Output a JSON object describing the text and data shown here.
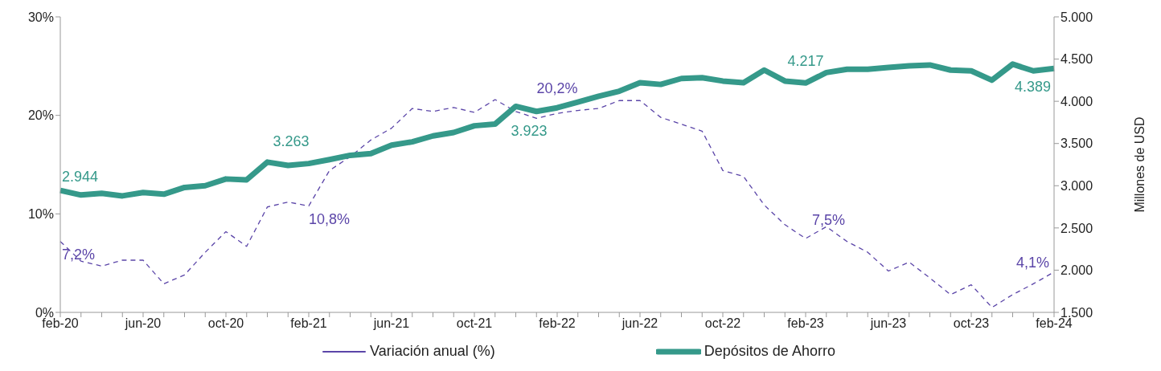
{
  "chart_data": {
    "type": "line",
    "y2label": "Millones de USD",
    "categories": [
      "feb-20",
      null,
      null,
      null,
      "jun-20",
      null,
      null,
      null,
      "oct-20",
      null,
      null,
      null,
      "feb-21",
      null,
      null,
      null,
      "jun-21",
      null,
      null,
      null,
      "oct-21",
      null,
      null,
      null,
      "feb-22",
      null,
      null,
      null,
      "jun-22",
      null,
      null,
      null,
      "oct-22",
      null,
      null,
      null,
      "feb-23",
      null,
      null,
      null,
      "jun-23",
      null,
      null,
      null,
      "oct-23",
      null,
      null,
      null,
      "feb-24"
    ],
    "series": [
      {
        "name": "Variación anual (%)",
        "color": "#5b45a8",
        "line_style": "dashed",
        "values": [
          7.2,
          5.2,
          4.7,
          5.3,
          5.3,
          2.9,
          3.8,
          6.1,
          8.2,
          6.7,
          10.7,
          11.2,
          10.8,
          14.4,
          15.8,
          17.5,
          18.7,
          20.7,
          20.4,
          20.8,
          20.3,
          21.6,
          20.4,
          19.7,
          20.2,
          20.5,
          20.7,
          21.5,
          21.5,
          19.8,
          19.1,
          18.4,
          14.4,
          13.8,
          10.9,
          8.9,
          7.5,
          8.7,
          7.2,
          6.1,
          4.2,
          5.1,
          3.5,
          1.8,
          2.8,
          0.5,
          1.8,
          2.9,
          4.1
        ],
        "value_labels": [
          "7,2%",
          null,
          null,
          null,
          null,
          null,
          null,
          null,
          null,
          null,
          null,
          null,
          "10,8%",
          null,
          null,
          null,
          null,
          null,
          null,
          null,
          null,
          null,
          null,
          null,
          "20,2%",
          null,
          null,
          null,
          null,
          null,
          null,
          null,
          null,
          null,
          null,
          null,
          "7,5%",
          null,
          null,
          null,
          null,
          null,
          null,
          null,
          null,
          null,
          null,
          null,
          "4,1%"
        ]
      },
      {
        "name": "Depósitos de Ahorro",
        "color": "#35998a",
        "line_style": "solid",
        "axis": "y2",
        "values": [
          2944,
          2890,
          2910,
          2880,
          2920,
          2900,
          2980,
          3000,
          3080,
          3070,
          3280,
          3240,
          3263,
          3310,
          3360,
          3380,
          3480,
          3520,
          3590,
          3630,
          3710,
          3730,
          3940,
          3880,
          3923,
          3990,
          4060,
          4120,
          4220,
          4200,
          4270,
          4280,
          4240,
          4220,
          4370,
          4240,
          4217,
          4340,
          4380,
          4380,
          4400,
          4420,
          4430,
          4370,
          4360,
          4250,
          4440,
          4360,
          4389
        ],
        "value_labels": [
          "2.944",
          null,
          null,
          null,
          null,
          null,
          null,
          null,
          null,
          null,
          null,
          null,
          "3.263",
          null,
          null,
          null,
          null,
          null,
          null,
          null,
          null,
          null,
          null,
          null,
          "3.923",
          null,
          null,
          null,
          null,
          null,
          null,
          null,
          null,
          null,
          null,
          null,
          "4.217",
          null,
          null,
          null,
          null,
          null,
          null,
          null,
          null,
          null,
          null,
          null,
          "4.389"
        ]
      }
    ],
    "ylim": [
      0,
      30
    ],
    "yticks": [
      {
        "value": 0,
        "label": "0%"
      },
      {
        "value": 10,
        "label": "10%"
      },
      {
        "value": 20,
        "label": "20%"
      },
      {
        "value": 30,
        "label": "30%"
      }
    ],
    "y2lim": [
      1500,
      5000
    ],
    "y2ticks": [
      {
        "value": 1500,
        "label": "1.500"
      },
      {
        "value": 2000,
        "label": "2.000"
      },
      {
        "value": 2500,
        "label": "2.500"
      },
      {
        "value": 3000,
        "label": "3.000"
      },
      {
        "value": 3500,
        "label": "3.500"
      },
      {
        "value": 4000,
        "label": "4.000"
      },
      {
        "value": 4500,
        "label": "4.500"
      },
      {
        "value": 5000,
        "label": "5.000"
      }
    ],
    "grid": false,
    "legend": "bottom",
    "marker": "none"
  }
}
